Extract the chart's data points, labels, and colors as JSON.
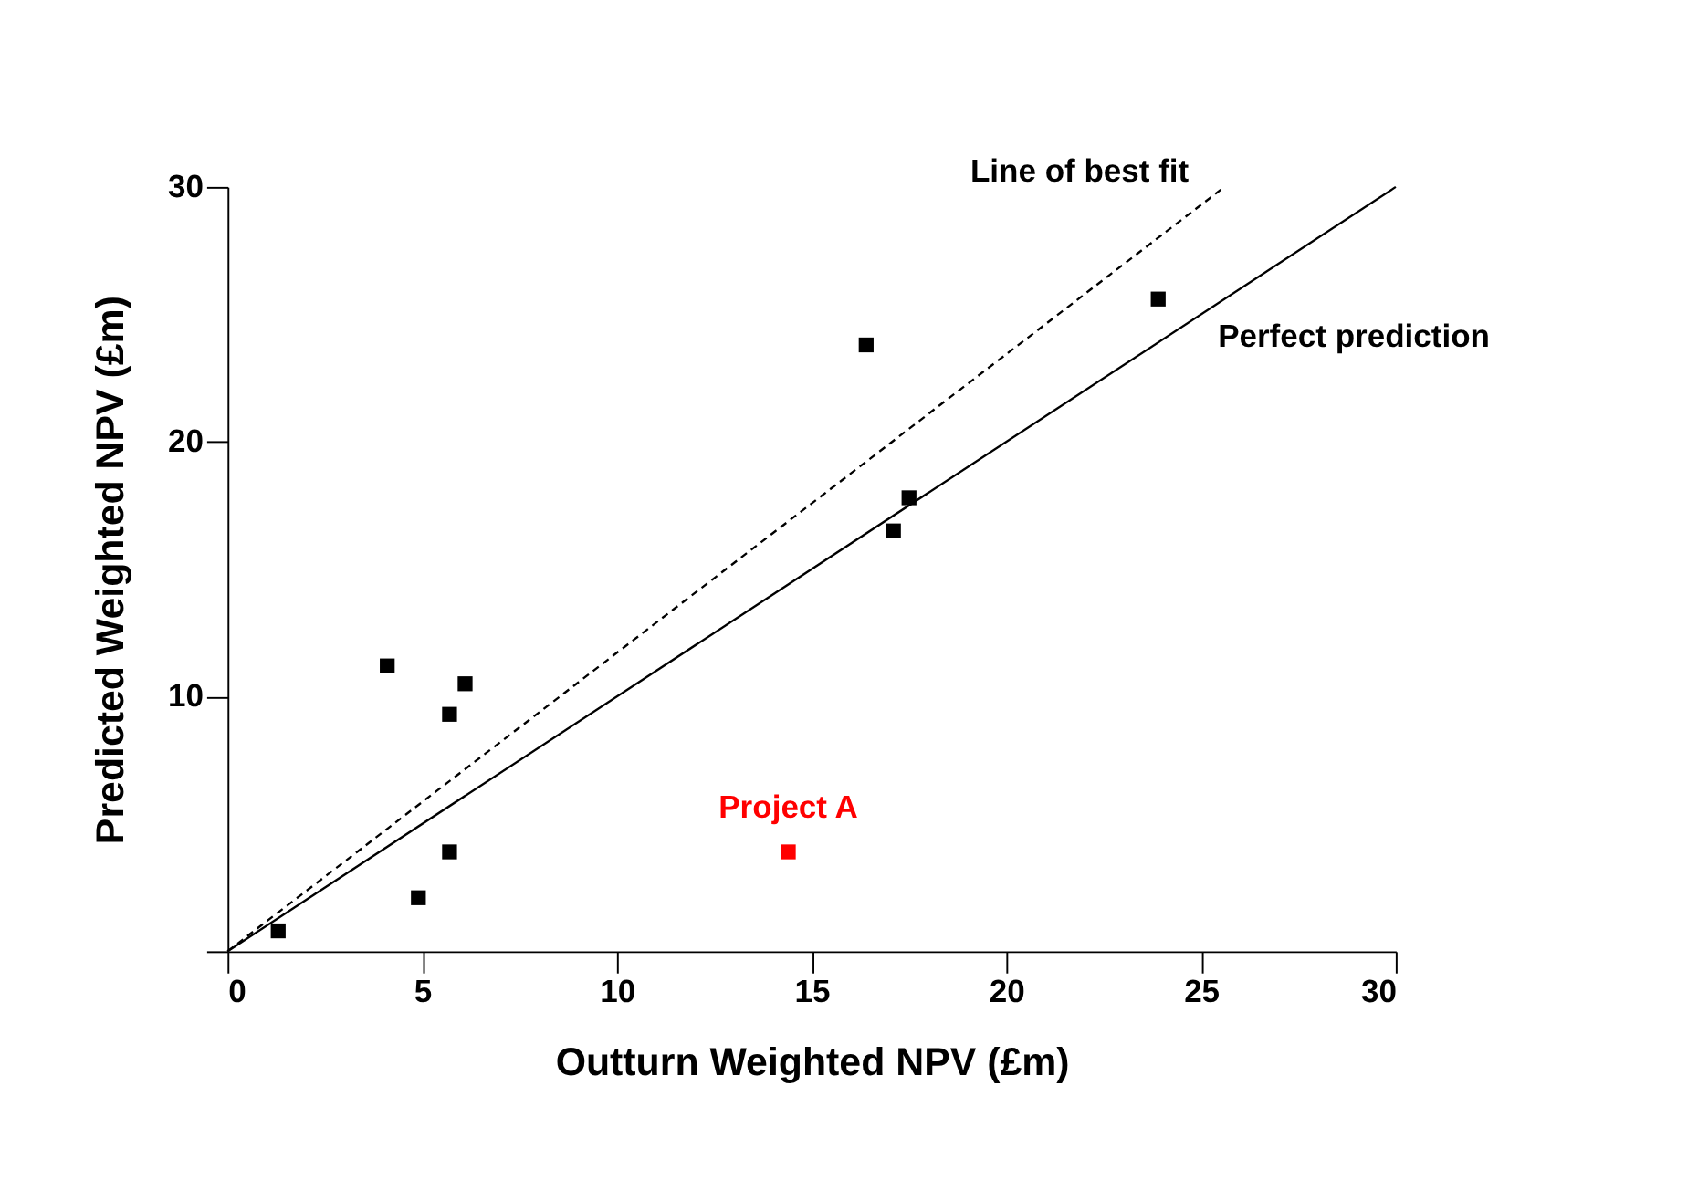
{
  "chart_data": {
    "type": "scatter",
    "xlabel": "Outturn Weighted NPV (£m)",
    "ylabel": "Predicted Weighted NPV (£m)",
    "xlim": [
      0,
      30
    ],
    "ylim": [
      0,
      30
    ],
    "xticks": [
      0,
      5,
      10,
      15,
      20,
      25,
      30
    ],
    "yticks": [
      {
        "value": 0,
        "label": null
      },
      10,
      20,
      30
    ],
    "grid": false,
    "series": [
      {
        "color": "#000000",
        "marker": "square",
        "x": [
          1.3,
          4.1,
          5.7,
          6.1,
          5.7,
          4.9,
          16.4,
          17.1,
          17.5,
          23.9
        ],
        "values": [
          0.8,
          11.2,
          9.3,
          10.5,
          3.9,
          2.1,
          23.8,
          16.5,
          17.8,
          25.6
        ]
      },
      {
        "name": "Project A",
        "color": "#ff0000",
        "marker": "square",
        "x": [
          14.4
        ],
        "values": [
          3.9
        ]
      },
      {
        "name": "Line of best fit",
        "type": "line",
        "line_style": "dashed",
        "color": "#000000",
        "x": [
          0,
          25.6
        ],
        "values": [
          0,
          30
        ]
      },
      {
        "name": "Perfect prediction",
        "type": "line",
        "line_style": "solid",
        "color": "#000000",
        "x": [
          0,
          30
        ],
        "values": [
          0,
          30
        ]
      }
    ]
  }
}
